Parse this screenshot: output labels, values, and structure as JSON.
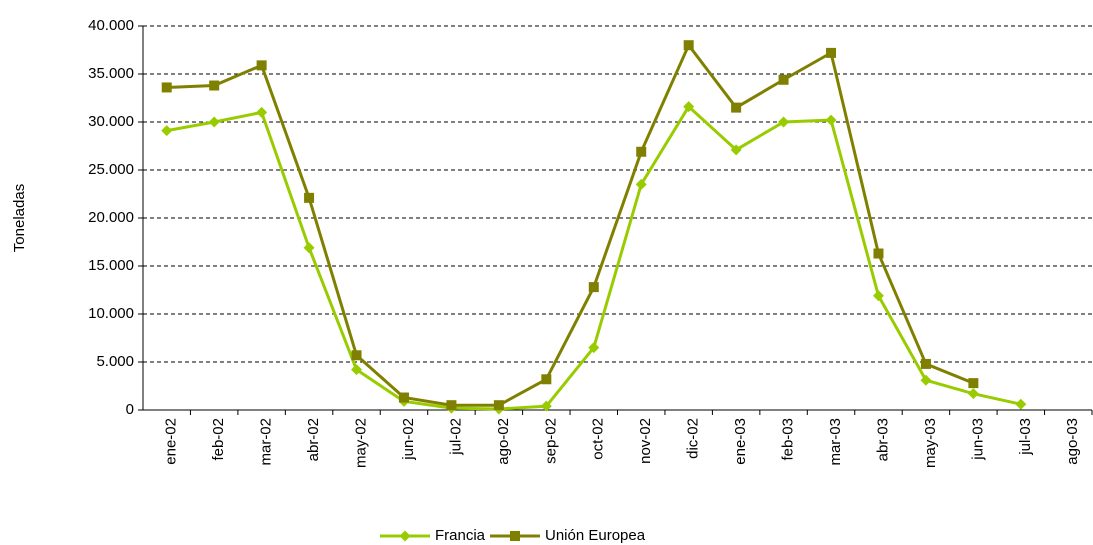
{
  "chart_data": {
    "type": "line",
    "y_label": "Toneladas",
    "categories": [
      "ene-02",
      "feb-02",
      "mar-02",
      "abr-02",
      "may-02",
      "jun-02",
      "jul-02",
      "ago-02",
      "sep-02",
      "oct-02",
      "nov-02",
      "dic-02",
      "ene-03",
      "feb-03",
      "mar-03",
      "abr-03",
      "may-03",
      "jun-03",
      "jul-03",
      "ago-03"
    ],
    "series": [
      {
        "name": "Francia",
        "color": "#99cc00",
        "marker": "diamond",
        "values": [
          29100,
          30000,
          31000,
          16900,
          4200,
          900,
          200,
          100,
          400,
          6500,
          23500,
          31600,
          27100,
          30000,
          30200,
          11900,
          3100,
          1700,
          600,
          null
        ]
      },
      {
        "name": "Unión Europea",
        "color": "#808000",
        "marker": "square",
        "values": [
          33600,
          33800,
          35900,
          22100,
          5700,
          1300,
          500,
          500,
          3200,
          12800,
          26900,
          38000,
          31500,
          34400,
          37200,
          16300,
          4800,
          2800,
          null,
          null
        ]
      }
    ],
    "ylim": [
      0,
      40000
    ],
    "yticks": [
      0,
      {
        "value": 5000,
        "label": "5.000"
      },
      {
        "value": 10000,
        "label": "10.000"
      },
      {
        "value": 15000,
        "label": "15.000"
      },
      {
        "value": 20000,
        "label": "20.000"
      },
      {
        "value": 25000,
        "label": "25.000"
      },
      {
        "value": 30000,
        "label": "30.000"
      },
      {
        "value": 35000,
        "label": "35.000"
      },
      {
        "value": 40000,
        "label": "40.000"
      }
    ],
    "grid": true,
    "legend": "bottom"
  }
}
